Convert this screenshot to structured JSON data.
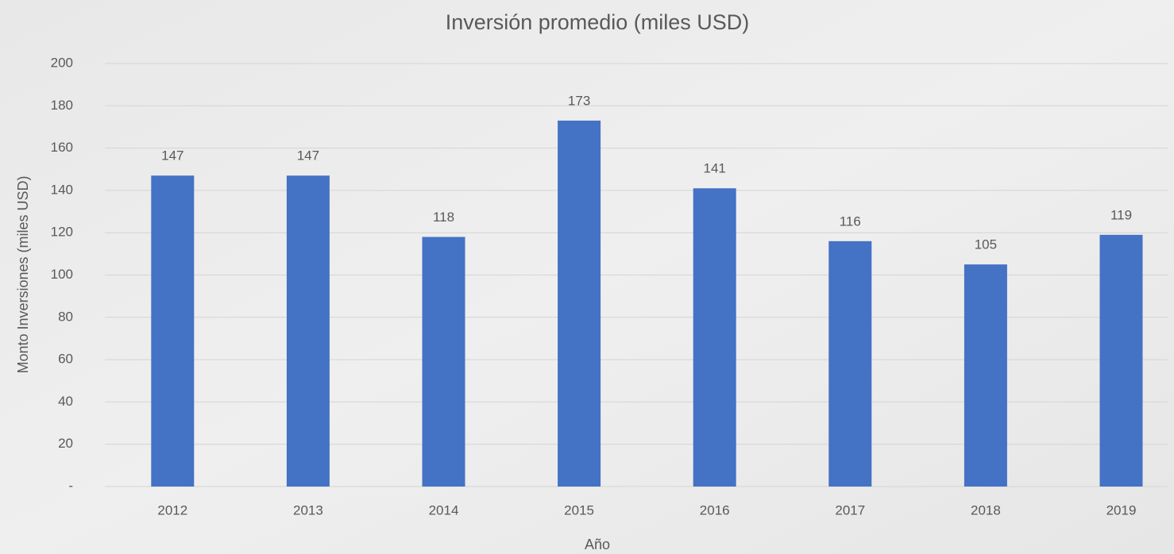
{
  "chart_data": {
    "type": "bar",
    "title": "Inversión promedio (miles USD)",
    "x_label": "Año",
    "y_label": "Monto Inversiones (miles USD)",
    "categories": [
      "2012",
      "2013",
      "2014",
      "2015",
      "2016",
      "2017",
      "2018",
      "2019"
    ],
    "values": [
      147,
      147,
      118,
      173,
      141,
      116,
      105,
      119
    ],
    "color": "#4472c4",
    "ylim": [
      0,
      200
    ],
    "yticks": [
      {
        "value": 0,
        "label": "-"
      },
      20,
      40,
      60,
      80,
      100,
      120,
      140,
      160,
      180,
      200
    ],
    "grid": true
  }
}
